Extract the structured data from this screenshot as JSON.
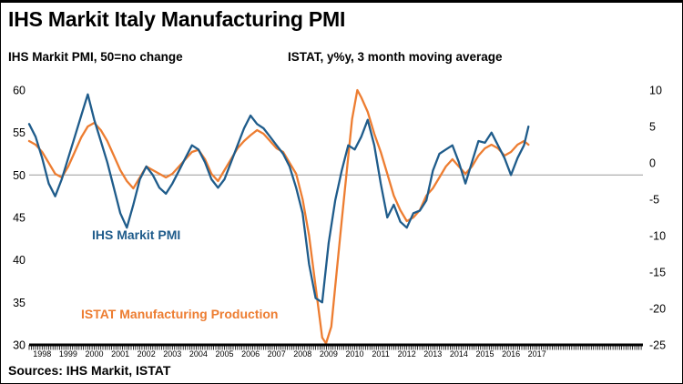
{
  "header": {
    "title": "IHS Markit Italy Manufacturing PMI"
  },
  "axes": {
    "left_title": "IHS Markit PMI, 50=no change",
    "right_title": "ISTAT, y%y, 3 month moving average"
  },
  "annotations": {
    "pmi_label": "IHS Markit PMI",
    "istat_label": "ISTAT Manufacturing Production"
  },
  "footer": {
    "sources": "Sources: IHS Markit, ISTAT"
  },
  "colors": {
    "pmi": "#1F5C8B",
    "istat": "#ED7D31",
    "gridline": "#A6A6A6",
    "axis": "#000000"
  },
  "chart_data": {
    "type": "line",
    "title": "IHS Markit Italy Manufacturing PMI",
    "grid": "single horizontal line at PMI=50 (no-change level)",
    "legend_position": "in-plot text labels",
    "gridline_left_value": 50,
    "left_axis": {
      "label": "IHS Markit PMI, 50=no change",
      "range": [
        30,
        60
      ],
      "ticks": [
        60,
        55,
        50,
        45,
        40,
        35,
        30
      ]
    },
    "right_axis": {
      "label": "ISTAT, y%y, 3 month moving average",
      "range": [
        -25,
        10
      ],
      "ticks": [
        10,
        5,
        0,
        -5,
        -10,
        -15,
        -20,
        -25
      ]
    },
    "x_axis": {
      "start": 1998,
      "end": 2017.17,
      "year_labels": [
        "1998",
        "1999",
        "2000",
        "2001",
        "2002",
        "2003",
        "2004",
        "2005",
        "2006",
        "2007",
        "2008",
        "2009",
        "2010",
        "2011",
        "2012",
        "2013",
        "2014",
        "2015",
        "2016",
        "2017"
      ]
    },
    "series": [
      {
        "name": "IHS Markit PMI",
        "axis": "left",
        "color": "#1F5C8B",
        "points": [
          [
            1998.0,
            56.0
          ],
          [
            1998.25,
            54.5
          ],
          [
            1998.5,
            52.0
          ],
          [
            1998.75,
            49.0
          ],
          [
            1999.0,
            47.5
          ],
          [
            1999.25,
            49.5
          ],
          [
            1999.5,
            52.0
          ],
          [
            1999.75,
            54.5
          ],
          [
            2000.0,
            57.0
          ],
          [
            2000.25,
            59.5
          ],
          [
            2000.5,
            56.5
          ],
          [
            2000.75,
            54.0
          ],
          [
            2001.0,
            51.5
          ],
          [
            2001.25,
            48.5
          ],
          [
            2001.5,
            45.5
          ],
          [
            2001.75,
            43.8
          ],
          [
            2002.0,
            46.5
          ],
          [
            2002.25,
            49.5
          ],
          [
            2002.5,
            51.0
          ],
          [
            2002.75,
            50.0
          ],
          [
            2003.0,
            48.5
          ],
          [
            2003.25,
            47.8
          ],
          [
            2003.5,
            49.0
          ],
          [
            2003.75,
            50.5
          ],
          [
            2004.0,
            52.0
          ],
          [
            2004.25,
            53.5
          ],
          [
            2004.5,
            53.0
          ],
          [
            2004.75,
            51.5
          ],
          [
            2005.0,
            49.5
          ],
          [
            2005.25,
            48.5
          ],
          [
            2005.5,
            49.5
          ],
          [
            2005.75,
            51.5
          ],
          [
            2006.0,
            53.5
          ],
          [
            2006.25,
            55.5
          ],
          [
            2006.5,
            57.0
          ],
          [
            2006.75,
            56.0
          ],
          [
            2007.0,
            55.5
          ],
          [
            2007.25,
            54.5
          ],
          [
            2007.5,
            53.5
          ],
          [
            2007.75,
            52.5
          ],
          [
            2008.0,
            51.0
          ],
          [
            2008.25,
            48.5
          ],
          [
            2008.5,
            45.5
          ],
          [
            2008.75,
            39.5
          ],
          [
            2009.0,
            35.5
          ],
          [
            2009.25,
            35.0
          ],
          [
            2009.5,
            42.0
          ],
          [
            2009.75,
            47.0
          ],
          [
            2010.0,
            50.5
          ],
          [
            2010.25,
            53.5
          ],
          [
            2010.5,
            53.0
          ],
          [
            2010.75,
            54.5
          ],
          [
            2011.0,
            56.5
          ],
          [
            2011.25,
            53.5
          ],
          [
            2011.5,
            49.0
          ],
          [
            2011.75,
            45.0
          ],
          [
            2012.0,
            46.5
          ],
          [
            2012.25,
            44.5
          ],
          [
            2012.5,
            43.8
          ],
          [
            2012.75,
            45.5
          ],
          [
            2013.0,
            45.8
          ],
          [
            2013.25,
            47.0
          ],
          [
            2013.5,
            50.5
          ],
          [
            2013.75,
            52.5
          ],
          [
            2014.0,
            53.0
          ],
          [
            2014.25,
            53.5
          ],
          [
            2014.5,
            51.5
          ],
          [
            2014.75,
            49.0
          ],
          [
            2015.0,
            51.5
          ],
          [
            2015.25,
            54.0
          ],
          [
            2015.5,
            53.8
          ],
          [
            2015.75,
            55.0
          ],
          [
            2016.0,
            53.5
          ],
          [
            2016.25,
            52.0
          ],
          [
            2016.5,
            50.0
          ],
          [
            2016.75,
            52.0
          ],
          [
            2017.0,
            53.5
          ],
          [
            2017.17,
            55.7
          ]
        ]
      },
      {
        "name": "ISTAT Manufacturing Production",
        "axis": "right",
        "color": "#ED7D31",
        "points": [
          [
            1998.0,
            3.0
          ],
          [
            1998.25,
            2.5
          ],
          [
            1998.5,
            1.5
          ],
          [
            1998.75,
            0.0
          ],
          [
            1999.0,
            -1.5
          ],
          [
            1999.25,
            -2.0
          ],
          [
            1999.5,
            -0.5
          ],
          [
            1999.75,
            1.5
          ],
          [
            2000.0,
            3.5
          ],
          [
            2000.25,
            5.0
          ],
          [
            2000.5,
            5.5
          ],
          [
            2000.75,
            4.5
          ],
          [
            2001.0,
            3.0
          ],
          [
            2001.25,
            1.0
          ],
          [
            2001.5,
            -1.0
          ],
          [
            2001.75,
            -2.5
          ],
          [
            2002.0,
            -3.5
          ],
          [
            2002.25,
            -2.0
          ],
          [
            2002.5,
            -0.5
          ],
          [
            2002.75,
            -1.0
          ],
          [
            2003.0,
            -1.5
          ],
          [
            2003.25,
            -2.0
          ],
          [
            2003.5,
            -1.5
          ],
          [
            2003.75,
            -0.5
          ],
          [
            2004.0,
            0.5
          ],
          [
            2004.25,
            1.5
          ],
          [
            2004.5,
            1.8
          ],
          [
            2004.75,
            0.5
          ],
          [
            2005.0,
            -1.5
          ],
          [
            2005.25,
            -2.5
          ],
          [
            2005.5,
            -1.0
          ],
          [
            2005.75,
            0.5
          ],
          [
            2006.0,
            2.0
          ],
          [
            2006.25,
            3.0
          ],
          [
            2006.5,
            3.8
          ],
          [
            2006.75,
            4.5
          ],
          [
            2007.0,
            4.0
          ],
          [
            2007.25,
            3.0
          ],
          [
            2007.5,
            2.0
          ],
          [
            2007.75,
            1.5
          ],
          [
            2008.0,
            0.0
          ],
          [
            2008.25,
            -1.5
          ],
          [
            2008.5,
            -5.0
          ],
          [
            2008.75,
            -10.0
          ],
          [
            2009.0,
            -17.0
          ],
          [
            2009.25,
            -24.0
          ],
          [
            2009.4,
            -24.8
          ],
          [
            2009.6,
            -22.5
          ],
          [
            2009.75,
            -17.0
          ],
          [
            2010.0,
            -8.0
          ],
          [
            2010.2,
            -1.0
          ],
          [
            2010.4,
            6.0
          ],
          [
            2010.6,
            10.0
          ],
          [
            2010.75,
            9.0
          ],
          [
            2011.0,
            7.0
          ],
          [
            2011.25,
            4.0
          ],
          [
            2011.5,
            1.5
          ],
          [
            2011.75,
            -1.5
          ],
          [
            2012.0,
            -4.5
          ],
          [
            2012.25,
            -6.5
          ],
          [
            2012.5,
            -8.0
          ],
          [
            2012.75,
            -7.5
          ],
          [
            2013.0,
            -6.5
          ],
          [
            2013.25,
            -4.5
          ],
          [
            2013.5,
            -3.5
          ],
          [
            2013.75,
            -2.0
          ],
          [
            2014.0,
            -0.5
          ],
          [
            2014.25,
            0.5
          ],
          [
            2014.5,
            -0.5
          ],
          [
            2014.75,
            -1.5
          ],
          [
            2015.0,
            -0.5
          ],
          [
            2015.25,
            1.0
          ],
          [
            2015.5,
            2.0
          ],
          [
            2015.75,
            2.5
          ],
          [
            2016.0,
            2.0
          ],
          [
            2016.25,
            1.0
          ],
          [
            2016.5,
            1.5
          ],
          [
            2016.75,
            2.5
          ],
          [
            2017.0,
            3.0
          ],
          [
            2017.17,
            2.5
          ]
        ]
      }
    ]
  }
}
